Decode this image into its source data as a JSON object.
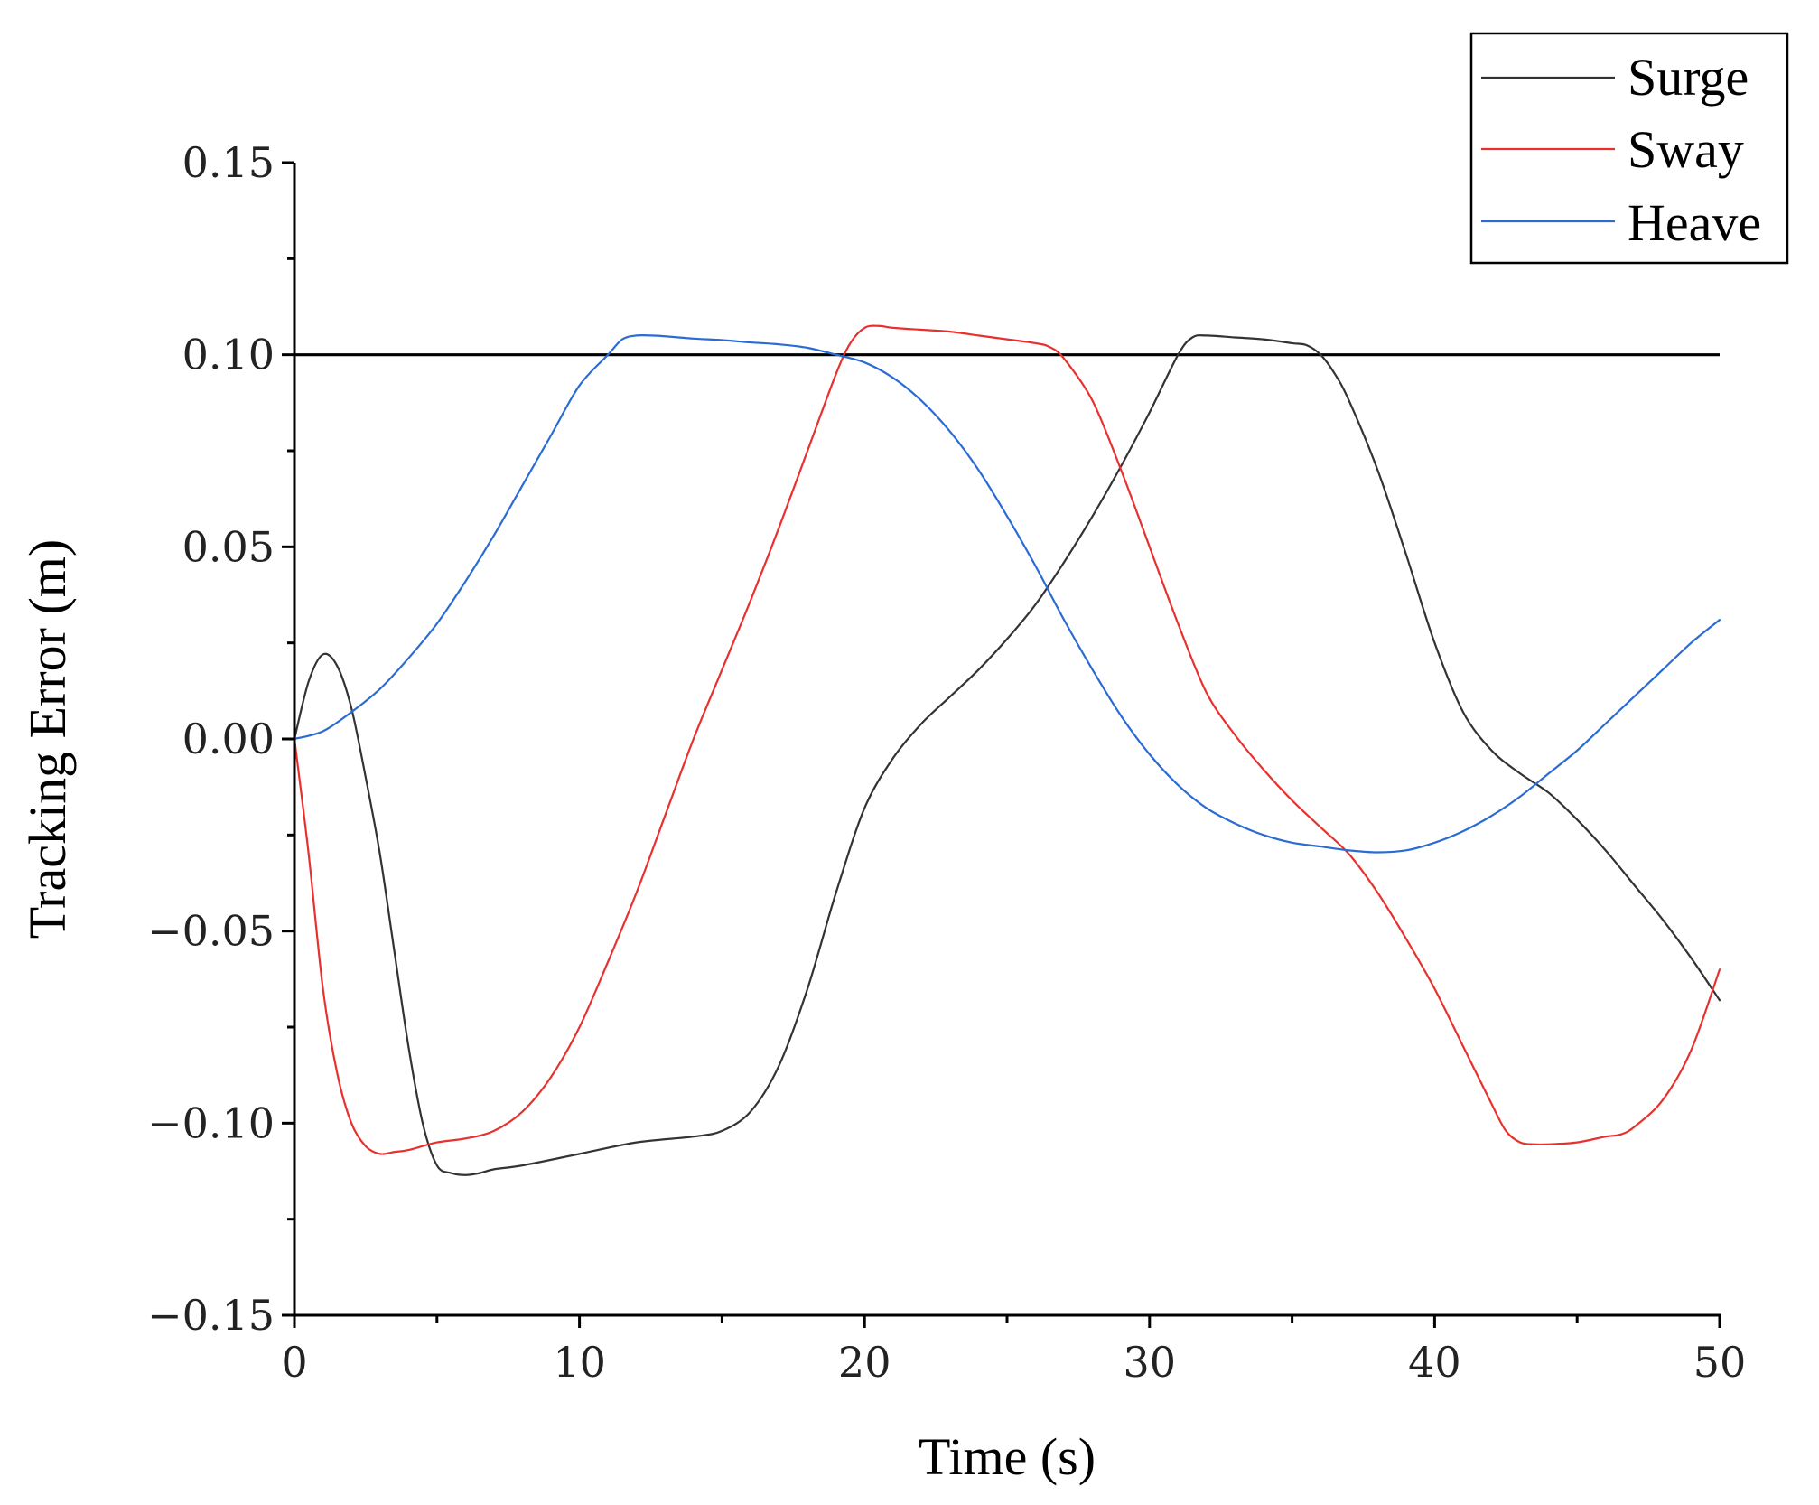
{
  "chart_data": {
    "type": "line",
    "title": "",
    "xlabel": "Time (s)",
    "ylabel": "Tracking Error (m)",
    "xlim": [
      0,
      50
    ],
    "ylim": [
      -0.15,
      0.15
    ],
    "xticks": [
      0,
      10,
      20,
      30,
      40,
      50
    ],
    "yticks": [
      -0.15,
      -0.1,
      -0.05,
      0.0,
      0.05,
      0.1,
      0.15
    ],
    "xtick_labels": [
      "0",
      "10",
      "20",
      "30",
      "40",
      "50"
    ],
    "ytick_labels": [
      "−0.15",
      "−0.10",
      "−0.05",
      "0.00",
      "0.05",
      "0.10",
      "0.15"
    ],
    "grid": false,
    "legend_position": "top-right",
    "reference_line": {
      "y": 0.1,
      "color": "#000000"
    },
    "series": [
      {
        "name": "Surge",
        "color": "#333333",
        "x": [
          0,
          0.5,
          1.0,
          1.5,
          2.0,
          2.5,
          3.0,
          3.5,
          4.0,
          4.5,
          5.0,
          5.5,
          6.0,
          6.5,
          7,
          8,
          10,
          12,
          14,
          15,
          16,
          17,
          18,
          19,
          20,
          21,
          22,
          23,
          24,
          25,
          26,
          27,
          28,
          29,
          30,
          31,
          31.5,
          32,
          33,
          34,
          35,
          35.5,
          36,
          36.5,
          37,
          38,
          39,
          40,
          41,
          42,
          43,
          44,
          45,
          46,
          47,
          48,
          49,
          50
        ],
        "values": [
          0,
          0.015,
          0.022,
          0.019,
          0.008,
          -0.01,
          -0.03,
          -0.055,
          -0.08,
          -0.1,
          -0.111,
          -0.113,
          -0.1135,
          -0.113,
          -0.112,
          -0.111,
          -0.108,
          -0.105,
          -0.1035,
          -0.102,
          -0.097,
          -0.085,
          -0.065,
          -0.04,
          -0.018,
          -0.005,
          0.004,
          0.011,
          0.018,
          0.026,
          0.035,
          0.046,
          0.058,
          0.071,
          0.085,
          0.1,
          0.1045,
          0.105,
          0.1045,
          0.104,
          0.103,
          0.1025,
          0.1,
          0.095,
          0.088,
          0.07,
          0.048,
          0.025,
          0.007,
          -0.003,
          -0.009,
          -0.014,
          -0.021,
          -0.029,
          -0.038,
          -0.047,
          -0.057,
          -0.068
        ]
      },
      {
        "name": "Sway",
        "color": "#e8312f",
        "x": [
          0,
          0.5,
          1.0,
          1.5,
          2.0,
          2.5,
          3.0,
          3.5,
          4,
          5,
          6,
          7,
          8,
          9,
          10,
          11,
          12,
          13,
          14,
          15,
          16,
          17,
          18,
          19,
          19.5,
          20,
          20.5,
          21,
          22,
          23,
          24,
          25,
          26,
          26.5,
          27,
          28,
          29,
          30,
          31,
          32,
          33,
          34,
          35,
          36,
          37,
          38,
          39,
          40,
          41,
          42,
          42.5,
          43,
          43.5,
          44,
          45,
          46,
          46.5,
          47,
          48,
          49,
          50
        ],
        "values": [
          0,
          -0.03,
          -0.065,
          -0.087,
          -0.1,
          -0.106,
          -0.108,
          -0.1075,
          -0.107,
          -0.105,
          -0.104,
          -0.102,
          -0.097,
          -0.088,
          -0.075,
          -0.058,
          -0.04,
          -0.02,
          0,
          0.018,
          0.036,
          0.055,
          0.075,
          0.095,
          0.103,
          0.107,
          0.1075,
          0.107,
          0.1065,
          0.106,
          0.105,
          0.104,
          0.103,
          0.102,
          0.099,
          0.088,
          0.07,
          0.05,
          0.03,
          0.012,
          0.001,
          -0.008,
          -0.016,
          -0.023,
          -0.03,
          -0.04,
          -0.052,
          -0.065,
          -0.08,
          -0.095,
          -0.102,
          -0.105,
          -0.1055,
          -0.1055,
          -0.105,
          -0.1035,
          -0.103,
          -0.101,
          -0.094,
          -0.081,
          -0.06
        ]
      },
      {
        "name": "Heave",
        "color": "#2a6bd4",
        "x": [
          0,
          1,
          2,
          3,
          4,
          5,
          6,
          7,
          8,
          9,
          10,
          11,
          11.5,
          12,
          12.5,
          13,
          14,
          15,
          16,
          17,
          18,
          19,
          20,
          21,
          22,
          23,
          24,
          25,
          26,
          27,
          28,
          29,
          30,
          31,
          32,
          33,
          34,
          35,
          36,
          37,
          38,
          39,
          40,
          41,
          42,
          43,
          44,
          45,
          46,
          47,
          48,
          49,
          50
        ],
        "values": [
          0,
          0.002,
          0.007,
          0.013,
          0.021,
          0.03,
          0.041,
          0.053,
          0.066,
          0.079,
          0.092,
          0.1,
          0.104,
          0.105,
          0.105,
          0.1048,
          0.1042,
          0.1038,
          0.1032,
          0.1027,
          0.1018,
          0.1,
          0.098,
          0.094,
          0.088,
          0.08,
          0.07,
          0.058,
          0.045,
          0.031,
          0.018,
          0.006,
          -0.004,
          -0.012,
          -0.018,
          -0.022,
          -0.025,
          -0.027,
          -0.028,
          -0.029,
          -0.0295,
          -0.029,
          -0.027,
          -0.024,
          -0.02,
          -0.015,
          -0.009,
          -0.003,
          0.004,
          0.011,
          0.018,
          0.025,
          0.031
        ]
      }
    ]
  }
}
